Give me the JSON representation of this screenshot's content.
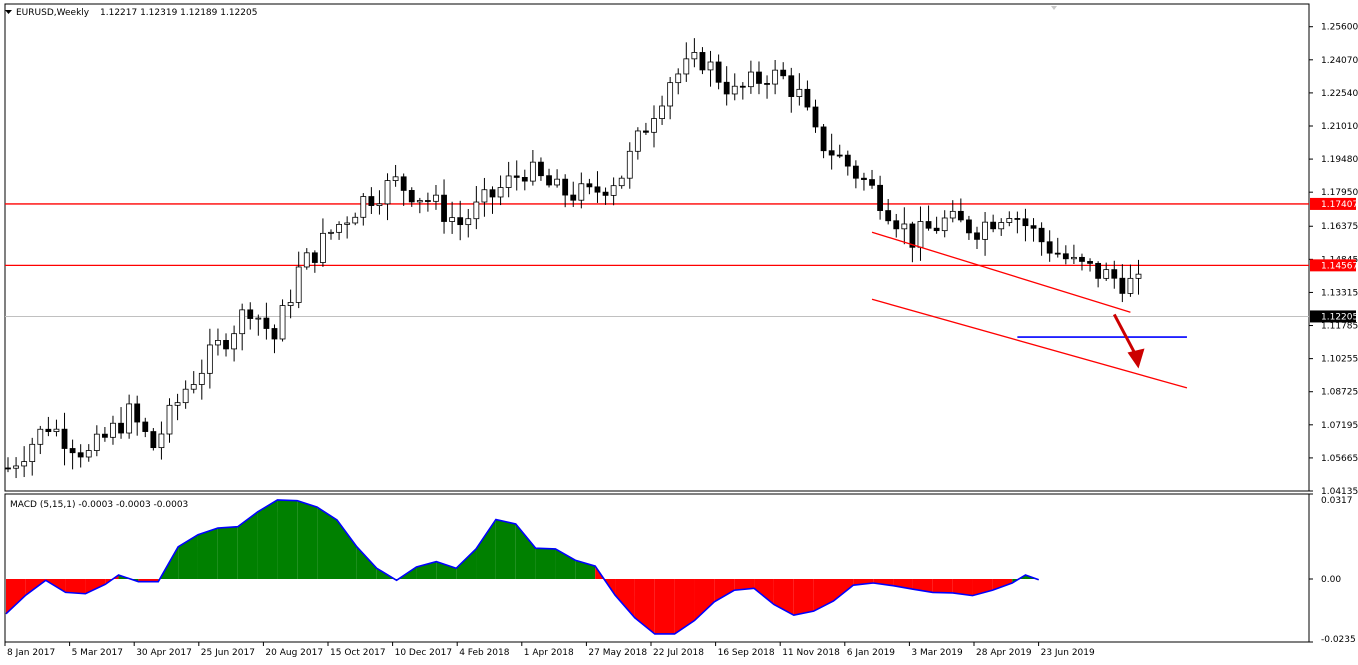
{
  "header": {
    "symbol": "EURUSD,Weekly",
    "ohlc": "1.12217 1.12319 1.12189 1.12205"
  },
  "macd_header": "MACD (5,15,1) -0.0003 -0.0003 -0.0003",
  "colors": {
    "bull_body": "#ffffff",
    "bear_body": "#000000",
    "resistance": "#ff0000",
    "support": "#0000ff",
    "macd_pos": "#008000",
    "macd_neg": "#ff0000",
    "macd_signal": "#0000ff",
    "arrow": "#cc0000"
  },
  "chart_data": [
    {
      "type": "candlestick",
      "series_name": "EURUSD,Weekly",
      "ylim": [
        1.04135,
        1.2665
      ],
      "y_ticks": [
        "1.25600",
        "1.24070",
        "1.22540",
        "1.21010",
        "1.19480",
        "1.17950",
        "1.16375",
        "1.14845",
        "1.13315",
        "1.11785",
        "1.10255",
        "1.08725",
        "1.07195",
        "1.05665",
        "1.04135"
      ],
      "x_labels": [
        "8 Jan 2017",
        "5 Mar 2017",
        "30 Apr 2017",
        "25 Jun 2017",
        "20 Aug 2017",
        "15 Oct 2017",
        "10 Dec 2017",
        "4 Feb 2018",
        "1 Apr 2018",
        "27 May 2018",
        "22 Jul 2018",
        "16 Sep 2018",
        "11 Nov 2018",
        "6 Jan 2019",
        "3 Mar 2019",
        "28 Apr 2019",
        "23 Jun 2019"
      ],
      "horizontal_levels": [
        {
          "label": "1.17407",
          "value": 1.17407,
          "color": "#ff0000"
        },
        {
          "label": "1.14567",
          "value": 1.14567,
          "color": "#ff0000"
        }
      ],
      "current_price": {
        "label": "1.12205",
        "value": 1.12205
      },
      "support_line": {
        "value": 1.1125,
        "from_week": 125,
        "to_week": 146
      },
      "channel": {
        "upper": [
          [
            107,
            1.161
          ],
          [
            139,
            1.124
          ]
        ],
        "lower": [
          [
            107,
            1.13
          ],
          [
            146,
            1.089
          ]
        ]
      },
      "arrow": {
        "from": [
          137,
          1.123
        ],
        "to": [
          140,
          1.098
        ]
      },
      "weeks": 141,
      "close_path": [
        [
          0,
          1.052
        ],
        [
          5,
          1.072
        ],
        [
          10,
          1.058
        ],
        [
          15,
          1.077
        ],
        [
          18,
          1.062
        ],
        [
          22,
          1.089
        ],
        [
          26,
          1.108
        ],
        [
          30,
          1.127
        ],
        [
          33,
          1.112
        ],
        [
          36,
          1.143
        ],
        [
          40,
          1.161
        ],
        [
          44,
          1.176
        ],
        [
          48,
          1.184
        ],
        [
          52,
          1.176
        ],
        [
          56,
          1.165
        ],
        [
          60,
          1.178
        ],
        [
          64,
          1.19
        ],
        [
          68,
          1.18
        ],
        [
          72,
          1.178
        ],
        [
          76,
          1.188
        ],
        [
          80,
          1.218
        ],
        [
          82,
          1.232
        ],
        [
          86,
          1.241
        ],
        [
          90,
          1.225
        ],
        [
          94,
          1.234
        ],
        [
          96,
          1.232
        ],
        [
          98,
          1.224
        ],
        [
          100,
          1.205
        ],
        [
          104,
          1.192
        ],
        [
          108,
          1.177
        ],
        [
          112,
          1.158
        ],
        [
          116,
          1.166
        ],
        [
          120,
          1.163
        ],
        [
          124,
          1.172
        ],
        [
          128,
          1.157
        ],
        [
          132,
          1.146
        ],
        [
          136,
          1.141
        ],
        [
          140,
          1.136
        ]
      ]
    },
    {
      "type": "area",
      "series_name": "MACD (5,15,1)",
      "ylim": [
        -0.0235,
        0.0317
      ],
      "y_ticks": [
        "0.0317",
        "0.00",
        "-0.0235"
      ],
      "values_text": "-0.0003 -0.0003 -0.0003"
    }
  ]
}
